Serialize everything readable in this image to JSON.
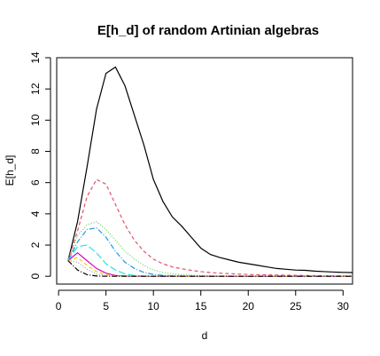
{
  "chart_data": {
    "type": "line",
    "title": "E[h_d] of random Artinian algebras",
    "xlabel": "d",
    "ylabel": "E[h_d]",
    "xlim": [
      -0.2,
      31
    ],
    "ylim": [
      -0.5,
      14
    ],
    "xticks": [
      "0",
      "5",
      "10",
      "15",
      "20",
      "25",
      "30"
    ],
    "yticks": [
      "0",
      "2",
      "4",
      "6",
      "8",
      "10",
      "12",
      "14"
    ],
    "grid": false,
    "legend": "none",
    "series": [
      {
        "color": "#000000",
        "dash": "",
        "x": [
          1,
          2,
          3,
          4,
          5,
          6,
          7,
          8,
          9,
          10,
          11,
          12,
          13,
          14,
          15,
          16,
          17,
          18,
          19,
          20,
          21,
          22,
          23,
          24,
          25,
          26,
          27,
          28,
          29,
          30,
          31
        ],
        "y": [
          1,
          3.5,
          7,
          10.7,
          13.0,
          13.4,
          12.2,
          10.3,
          8.4,
          6.2,
          4.8,
          3.8,
          3.2,
          2.5,
          1.8,
          1.4,
          1.2,
          1.05,
          0.9,
          0.8,
          0.7,
          0.6,
          0.5,
          0.45,
          0.4,
          0.38,
          0.33,
          0.3,
          0.27,
          0.25,
          0.24
        ]
      },
      {
        "color": "#DF536B",
        "dash": "4,3",
        "x": [
          1,
          2,
          3,
          4,
          5,
          6,
          7,
          8,
          9,
          10,
          11,
          12,
          13,
          14,
          15,
          16,
          17,
          18,
          19,
          20,
          21,
          22,
          23,
          24,
          25,
          26,
          27,
          28,
          29,
          30,
          31
        ],
        "y": [
          1,
          2.9,
          5.1,
          6.2,
          5.9,
          4.6,
          3.3,
          2.3,
          1.6,
          1.1,
          0.8,
          0.6,
          0.48,
          0.38,
          0.3,
          0.24,
          0.2,
          0.17,
          0.14,
          0.12,
          0.1,
          0.09,
          0.08,
          0.07,
          0.06,
          0.05,
          0.04,
          0.03,
          0.03,
          0.02,
          0.02
        ]
      },
      {
        "color": "#61D04F",
        "dash": "1,2",
        "x": [
          1,
          2,
          3,
          4,
          5,
          6,
          7,
          8,
          9,
          10,
          11,
          12,
          13,
          14,
          15,
          16,
          17,
          18,
          19,
          20,
          25,
          31
        ],
        "y": [
          1,
          2.6,
          3.3,
          3.5,
          3.0,
          2.3,
          1.6,
          1.1,
          0.7,
          0.4,
          0.25,
          0.15,
          0.1,
          0.07,
          0.05,
          0.03,
          0.02,
          0.02,
          0.01,
          0.01,
          0,
          0
        ]
      },
      {
        "color": "#2297E6",
        "dash": "6,2,1,2",
        "x": [
          1,
          2,
          3,
          4,
          5,
          6,
          7,
          8,
          9,
          10,
          11,
          12,
          13,
          14,
          15,
          20,
          25,
          31
        ],
        "y": [
          1,
          2.2,
          3.0,
          3.1,
          2.5,
          1.6,
          0.9,
          0.5,
          0.25,
          0.12,
          0.06,
          0.03,
          0.02,
          0.01,
          0,
          0,
          0,
          0
        ]
      },
      {
        "color": "#28E2E5",
        "dash": "8,3",
        "x": [
          1,
          2,
          3,
          4,
          5,
          6,
          7,
          8,
          9,
          10,
          15,
          20,
          25,
          31
        ],
        "y": [
          1,
          1.9,
          2.0,
          1.5,
          0.8,
          0.4,
          0.15,
          0.05,
          0.02,
          0,
          0,
          0,
          0,
          0
        ]
      },
      {
        "color": "#CD0BBC",
        "dash": "",
        "x": [
          1,
          2,
          3,
          4,
          5,
          6,
          7,
          8,
          10,
          15,
          20,
          25,
          31
        ],
        "y": [
          1,
          1.5,
          1.0,
          0.5,
          0.2,
          0.05,
          0.02,
          0,
          0,
          0,
          0,
          0,
          0
        ]
      },
      {
        "color": "#F5C710",
        "dash": "4,3",
        "x": [
          1,
          2,
          3,
          4,
          5,
          6,
          8,
          10,
          15,
          20,
          25,
          31
        ],
        "y": [
          1,
          1.2,
          0.7,
          0.3,
          0.1,
          0.02,
          0,
          0,
          0,
          0,
          0,
          0
        ]
      },
      {
        "color": "#9E9E9E",
        "dash": "1,2",
        "x": [
          1,
          2,
          3,
          4,
          5,
          6,
          8,
          10,
          15,
          20,
          25,
          31
        ],
        "y": [
          1,
          0.9,
          0.45,
          0.15,
          0.04,
          0.01,
          0,
          0,
          0,
          0,
          0,
          0
        ]
      },
      {
        "color": "#000000",
        "dash": "6,2,1,2",
        "x": [
          1,
          2,
          3,
          4,
          5,
          6,
          8,
          10,
          15,
          20,
          25,
          31
        ],
        "y": [
          1,
          0.4,
          0.1,
          0.02,
          0,
          0,
          0,
          0,
          0,
          0,
          0,
          0
        ]
      }
    ]
  }
}
